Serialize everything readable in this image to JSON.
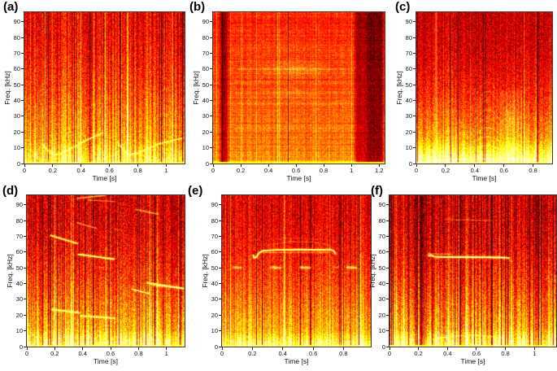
{
  "figure": {
    "background": "#ffffff",
    "colormap": "hot",
    "palette": {
      "dark_red": "#a01008",
      "red": "#d92b05",
      "orange": "#f07800",
      "amber": "#ffb300",
      "yellow": "#ffd94a",
      "pale_line": "#ffe98a"
    }
  },
  "chart_data": [
    {
      "id": "a",
      "label": "(a)",
      "type": "heatmap",
      "subtype": "spectrogram",
      "xlabel": "Time [s]",
      "ylabel": "Freq. [kHz]",
      "xmax": 1.13,
      "ymax": 96,
      "xticks": [
        0,
        0.2,
        0.4,
        0.6,
        0.8,
        1
      ],
      "yticks": [
        0,
        10,
        20,
        30,
        40,
        50,
        60,
        70,
        80,
        90
      ],
      "texture": {
        "top": 0.36,
        "bottom": 0.74,
        "gamma": 1.7,
        "streak": 0.28,
        "darkP": 0.05,
        "brightP": 0.12,
        "noise": 0.14,
        "bb": {
          "f": 14,
          "g": 0.16
        },
        "seed": 11
      },
      "features": [
        {
          "kind": "curve",
          "pts": [
            [
              0.13,
              12
            ],
            [
              0.17,
              8
            ],
            [
              0.21,
              5.5
            ],
            [
              0.26,
              6
            ],
            [
              0.33,
              9.5
            ],
            [
              0.41,
              13.5
            ],
            [
              0.49,
              17
            ],
            [
              0.55,
              19.5
            ]
          ],
          "g": 0.7,
          "w": 1.6
        },
        {
          "kind": "curve",
          "pts": [
            [
              0.66,
              13.5
            ],
            [
              0.7,
              8
            ],
            [
              0.745,
              5.5
            ],
            [
              0.8,
              6.5
            ],
            [
              0.87,
              9.5
            ],
            [
              0.95,
              12.5
            ],
            [
              1.04,
              14.5
            ],
            [
              1.11,
              16
            ]
          ],
          "g": 0.7,
          "w": 1.6
        }
      ]
    },
    {
      "id": "b",
      "label": "(b)",
      "type": "heatmap",
      "subtype": "spectrogram",
      "xlabel": "Time [s]",
      "ylabel": "Freq. [kHz]",
      "xmax": 1.24,
      "ymax": 96,
      "xticks": [
        0,
        0.2,
        0.4,
        0.6,
        0.8,
        1,
        1.2
      ],
      "yticks": [
        0,
        10,
        20,
        30,
        40,
        50,
        60,
        70,
        80,
        90
      ],
      "texture": {
        "top": 0.44,
        "bottom": 0.6,
        "gamma": 1.2,
        "streak": 0.09,
        "darkP": 0.008,
        "brightP": 0.03,
        "noise": 0.09,
        "hs": 0.09,
        "bb": {
          "f": 3,
          "g": 0.25
        },
        "seed": 22
      },
      "features": [
        {
          "kind": "vdark",
          "t": [
            0.035,
            0.115
          ],
          "a": 0.55
        },
        {
          "kind": "vdark",
          "t": [
            1.01,
            1.24
          ],
          "a": 0.45
        },
        {
          "kind": "vdark",
          "t": [
            1.09,
            1.24
          ],
          "a": 0.3
        },
        {
          "kind": "line",
          "t": [
            0.16,
            1.0
          ],
          "f": [
            22,
            22
          ],
          "g": 0.14,
          "w": 1.4
        },
        {
          "kind": "line",
          "t": [
            0.16,
            1.0
          ],
          "f": [
            30,
            30
          ],
          "g": 0.1,
          "w": 1.4
        },
        {
          "kind": "line",
          "t": [
            0.16,
            1.0
          ],
          "f": [
            38,
            38
          ],
          "g": 0.12,
          "w": 1.4
        },
        {
          "kind": "line",
          "t": [
            0.16,
            1.0
          ],
          "f": [
            45,
            45
          ],
          "g": 0.16,
          "w": 1.4
        },
        {
          "kind": "line",
          "t": [
            0.16,
            1.0
          ],
          "f": [
            52,
            52
          ],
          "g": 0.12,
          "w": 1.4
        },
        {
          "kind": "line",
          "t": [
            0.18,
            0.98
          ],
          "f": [
            60,
            60
          ],
          "g": 0.22,
          "w": 1.6
        },
        {
          "kind": "line",
          "t": [
            0.16,
            1.0
          ],
          "f": [
            68,
            68
          ],
          "g": 0.1,
          "w": 1.4
        },
        {
          "kind": "blob",
          "t": 0.6,
          "f": 60,
          "rt": 0.28,
          "rf": 8,
          "g": 0.3
        },
        {
          "kind": "blob",
          "t": 0.58,
          "f": 45,
          "rt": 0.24,
          "rf": 6,
          "g": 0.15
        },
        {
          "kind": "blob",
          "t": 0.55,
          "f": 75,
          "rt": 0.2,
          "rf": 10,
          "g": 0.08
        }
      ]
    },
    {
      "id": "c",
      "label": "(c)",
      "type": "heatmap",
      "subtype": "spectrogram",
      "xlabel": "Time [s]",
      "ylabel": "Freq. [kHz]",
      "xmax": 0.93,
      "ymax": 96,
      "xticks": [
        0,
        0.2,
        0.4,
        0.6,
        0.8
      ],
      "yticks": [
        0,
        10,
        20,
        30,
        40,
        50,
        60,
        70,
        80,
        90
      ],
      "texture": {
        "top": 0.3,
        "bottom": 0.8,
        "gamma": 2.2,
        "streak": 0.16,
        "darkP": 0.03,
        "brightP": 0.05,
        "noise": 0.13,
        "bb": {
          "f": 15,
          "g": 0.26
        },
        "seed": 33
      },
      "features": [
        {
          "kind": "vline",
          "t": 0.135,
          "f": [
            0,
            96
          ],
          "g": 0.5,
          "w": 1
        },
        {
          "kind": "vline",
          "t": 0.075,
          "f": [
            0,
            52
          ],
          "g": 0.18,
          "w": 1
        },
        {
          "kind": "chevrons",
          "t": [
            0.4,
            0.575
          ],
          "n": 9,
          "fb": 4.5,
          "df": 4.6,
          "amp": 0.25,
          "g": 0.45
        },
        {
          "kind": "comb",
          "t": [
            0.585,
            0.72
          ],
          "f": [
            2,
            46
          ],
          "n": 13,
          "g": 0.35
        },
        {
          "kind": "blob",
          "t": 0.65,
          "f": 9,
          "rt": 0.07,
          "rf": 8,
          "g": 0.5
        },
        {
          "kind": "blob",
          "t": 0.64,
          "f": 26,
          "rt": 0.08,
          "rf": 16,
          "g": 0.18
        },
        {
          "kind": "blob",
          "t": 0.3,
          "f": 18,
          "rt": 0.1,
          "rf": 8,
          "g": 0.1
        },
        {
          "kind": "curve",
          "pts": [
            [
              0.13,
              2.2
            ],
            [
              0.3,
              2.8
            ],
            [
              0.5,
              3
            ],
            [
              0.7,
              3
            ],
            [
              0.82,
              2.4
            ]
          ],
          "g": 0.5,
          "w": 1.5
        }
      ]
    },
    {
      "id": "d",
      "label": "(d)",
      "type": "heatmap",
      "subtype": "spectrogram",
      "xlabel": "Time [s]",
      "ylabel": "Freq. [kHz]",
      "xmax": 1.13,
      "ymax": 96,
      "xticks": [
        0,
        0.2,
        0.4,
        0.6,
        0.8,
        1
      ],
      "yticks": [
        0,
        10,
        20,
        30,
        40,
        50,
        60,
        70,
        80,
        90
      ],
      "texture": {
        "top": 0.32,
        "bottom": 0.78,
        "gamma": 2.0,
        "streak": 0.26,
        "darkP": 0.09,
        "brightP": 0.09,
        "noise": 0.15,
        "bb": {
          "f": 11,
          "g": 0.22
        },
        "seed": 44
      },
      "features": [
        {
          "kind": "line",
          "t": [
            0.17,
            0.36
          ],
          "f": [
            70.5,
            65.5
          ],
          "g": 0.8,
          "w": 1.7
        },
        {
          "kind": "line",
          "t": [
            0.37,
            0.625
          ],
          "f": [
            58.5,
            55.5
          ],
          "g": 0.85,
          "w": 1.9
        },
        {
          "kind": "line",
          "t": [
            0.18,
            0.375
          ],
          "f": [
            23.5,
            21.5
          ],
          "g": 0.85,
          "w": 1.9
        },
        {
          "kind": "line",
          "t": [
            0.385,
            0.63
          ],
          "f": [
            19.5,
            18
          ],
          "g": 0.8,
          "w": 1.9
        },
        {
          "kind": "line",
          "t": [
            0.75,
            0.88
          ],
          "f": [
            36.5,
            33.5
          ],
          "g": 0.75,
          "w": 1.6
        },
        {
          "kind": "line",
          "t": [
            0.86,
            1.12
          ],
          "f": [
            40.5,
            36.8
          ],
          "g": 0.8,
          "w": 1.9
        },
        {
          "kind": "line",
          "t": [
            0.9,
            1.12
          ],
          "f": [
            38.8,
            37.2
          ],
          "g": 0.5,
          "w": 1.3
        },
        {
          "kind": "line",
          "t": [
            0.36,
            0.56
          ],
          "f": [
            94,
            96
          ],
          "g": 0.65,
          "w": 1.4
        },
        {
          "kind": "line",
          "t": [
            0.44,
            0.63
          ],
          "f": [
            93,
            92
          ],
          "g": 0.45,
          "w": 1.2
        },
        {
          "kind": "line",
          "t": [
            0.78,
            0.94
          ],
          "f": [
            87,
            84
          ],
          "g": 0.55,
          "w": 1.3
        },
        {
          "kind": "line",
          "t": [
            0.36,
            0.5
          ],
          "f": [
            78.5,
            75
          ],
          "g": 0.55,
          "w": 1.3
        },
        {
          "kind": "line",
          "t": [
            0.63,
            0.67
          ],
          "f": [
            74.5,
            74
          ],
          "g": 0.35,
          "w": 1
        },
        {
          "kind": "line",
          "t": [
            0.52,
            0.56
          ],
          "f": [
            50.5,
            50.2
          ],
          "g": 0.35,
          "w": 1
        },
        {
          "kind": "vline",
          "t": 0.455,
          "f": [
            0,
            96
          ],
          "g": 0.25,
          "w": 1
        },
        {
          "kind": "vline",
          "t": 0.325,
          "f": [
            0,
            96
          ],
          "g": 0.18,
          "w": 1
        },
        {
          "kind": "vline",
          "t": 0.04,
          "f": [
            0,
            96
          ],
          "g": 0.15,
          "w": 1
        }
      ]
    },
    {
      "id": "e",
      "label": "(e)",
      "type": "heatmap",
      "subtype": "spectrogram",
      "xlabel": "Time [s]",
      "ylabel": "Freq. [kHz]",
      "xmax": 0.98,
      "ymax": 96,
      "xticks": [
        0,
        0.2,
        0.4,
        0.6,
        0.8
      ],
      "yticks": [
        0,
        10,
        20,
        30,
        40,
        50,
        60,
        70,
        80,
        90
      ],
      "texture": {
        "top": 0.34,
        "bottom": 0.76,
        "gamma": 1.9,
        "streak": 0.2,
        "darkP": 0.05,
        "brightP": 0.07,
        "noise": 0.13,
        "bb": {
          "f": 9,
          "g": 0.22
        },
        "seed": 55
      },
      "features": [
        {
          "kind": "curve",
          "pts": [
            [
              0.205,
              58
            ],
            [
              0.212,
              56.2
            ],
            [
              0.225,
              56.6
            ],
            [
              0.245,
              59.5
            ],
            [
              0.27,
              60.8
            ],
            [
              0.35,
              61.3
            ],
            [
              0.5,
              61.6
            ],
            [
              0.65,
              61.4
            ],
            [
              0.71,
              61.6
            ],
            [
              0.735,
              60.8
            ],
            [
              0.748,
              58.8
            ]
          ],
          "g": 0.9,
          "w": 1.7
        },
        {
          "kind": "line",
          "t": [
            0.27,
            0.71
          ],
          "f": [
            59.6,
            59.9
          ],
          "g": 0.5,
          "w": 1.1
        },
        {
          "kind": "curve",
          "pts": [
            [
              0.3,
              64.5
            ],
            [
              0.45,
              66.5
            ],
            [
              0.6,
              66.3
            ],
            [
              0.7,
              64.8
            ]
          ],
          "g": 0.25,
          "w": 1.1
        },
        {
          "kind": "curve",
          "pts": [
            [
              0.33,
              68
            ],
            [
              0.5,
              68.8
            ],
            [
              0.65,
              68
            ]
          ],
          "g": 0.15,
          "w": 1
        },
        {
          "kind": "line",
          "t": [
            0.075,
            0.125
          ],
          "f": [
            50.3,
            50.1
          ],
          "g": 0.5,
          "w": 2.5
        },
        {
          "kind": "line",
          "t": [
            0.33,
            0.385
          ],
          "f": [
            50.2,
            49.9
          ],
          "g": 0.55,
          "w": 3
        },
        {
          "kind": "line",
          "t": [
            0.52,
            0.578
          ],
          "f": [
            50.2,
            49.9
          ],
          "g": 0.55,
          "w": 3
        },
        {
          "kind": "line",
          "t": [
            0.825,
            0.88
          ],
          "f": [
            50.3,
            50
          ],
          "g": 0.55,
          "w": 3
        },
        {
          "kind": "line",
          "t": [
            0.73,
            0.765
          ],
          "f": [
            50.5,
            50.3
          ],
          "g": 0.3,
          "w": 2
        },
        {
          "kind": "vline",
          "t": 0.045,
          "f": [
            0,
            96
          ],
          "g": 0.22,
          "w": 1
        },
        {
          "kind": "vline",
          "t": 0.095,
          "f": [
            0,
            96
          ],
          "g": 0.18,
          "w": 1
        },
        {
          "kind": "vline",
          "t": 0.86,
          "f": [
            0,
            96
          ],
          "g": 0.15,
          "w": 1
        }
      ]
    },
    {
      "id": "f",
      "label": "(f)",
      "type": "heatmap",
      "subtype": "spectrogram",
      "xlabel": "Time [s]",
      "ylabel": "Freq. [kHz]",
      "xmax": 1.15,
      "ymax": 96,
      "xticks": [
        0,
        0.2,
        0.4,
        0.6,
        0.8,
        1
      ],
      "yticks": [
        0,
        10,
        20,
        30,
        40,
        50,
        60,
        70,
        80,
        90
      ],
      "texture": {
        "top": 0.31,
        "bottom": 0.78,
        "gamma": 2.0,
        "streak": 0.3,
        "darkP": 0.1,
        "brightP": 0.1,
        "noise": 0.15,
        "bb": {
          "f": 11,
          "g": 0.24
        },
        "seed": 66
      },
      "features": [
        {
          "kind": "curve",
          "pts": [
            [
              0.27,
              57.6
            ],
            [
              0.285,
              58.2
            ],
            [
              0.3,
              57.2
            ],
            [
              0.33,
              56.9
            ],
            [
              0.5,
              56.7
            ],
            [
              0.7,
              56.6
            ],
            [
              0.8,
              56.5
            ],
            [
              0.825,
              56.2
            ]
          ],
          "g": 0.9,
          "w": 1.7
        },
        {
          "kind": "line",
          "t": [
            0.33,
            0.79
          ],
          "f": [
            56.9,
            56.5
          ],
          "g": 0.8,
          "w": 1.1
        },
        {
          "kind": "line",
          "t": [
            0.265,
            0.43
          ],
          "f": [
            58.9,
            58.6
          ],
          "g": 0.45,
          "w": 1.2
        },
        {
          "kind": "line",
          "t": [
            0.82,
            0.845
          ],
          "f": [
            56,
            53.5
          ],
          "g": 0.35,
          "w": 1.1
        },
        {
          "kind": "line",
          "t": [
            0.38,
            0.71
          ],
          "f": [
            80.6,
            80.1
          ],
          "g": 0.28,
          "w": 1.2
        },
        {
          "kind": "line",
          "t": [
            0.405,
            0.445
          ],
          "f": [
            81.6,
            81.3
          ],
          "g": 0.2,
          "w": 1
        },
        {
          "kind": "curve",
          "pts": [
            [
              0.3,
              4.5
            ],
            [
              0.42,
              6.5
            ],
            [
              0.55,
              7.3
            ],
            [
              0.68,
              6.8
            ],
            [
              0.79,
              5.2
            ]
          ],
          "g": 0.45,
          "w": 1.4
        },
        {
          "kind": "vline",
          "t": 0.04,
          "f": [
            0,
            96
          ],
          "g": 0.22,
          "w": 1
        },
        {
          "kind": "vline",
          "t": 0.415,
          "f": [
            0,
            96
          ],
          "g": 0.16,
          "w": 1
        },
        {
          "kind": "vline",
          "t": 0.69,
          "f": [
            0,
            96
          ],
          "g": 0.28,
          "w": 1
        },
        {
          "kind": "vline",
          "t": 0.735,
          "f": [
            0,
            96
          ],
          "g": 0.18,
          "w": 1
        },
        {
          "kind": "vline",
          "t": 1.06,
          "f": [
            0,
            96
          ],
          "g": 0.16,
          "w": 1
        }
      ]
    }
  ]
}
